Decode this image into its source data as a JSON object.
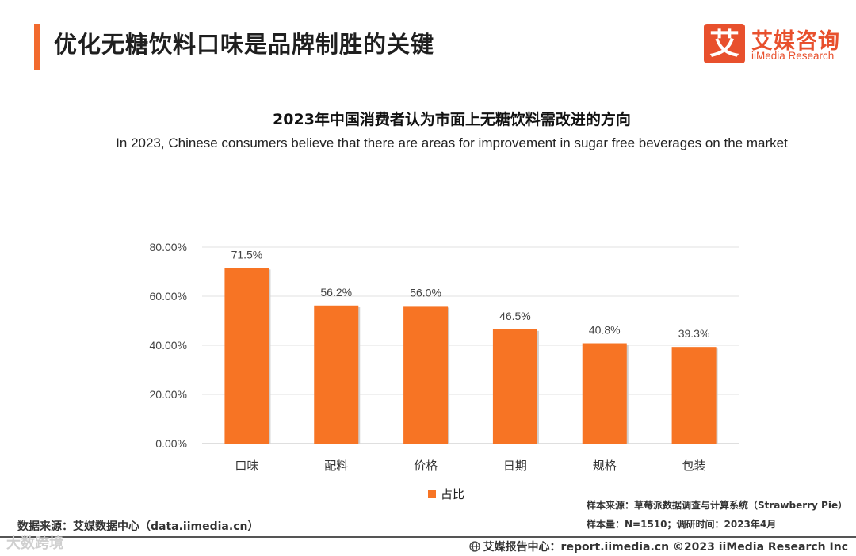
{
  "header": {
    "title": "优化无糖饮料口味是品牌制胜的关键",
    "brand_colors": {
      "accent": "#f26a2e",
      "bar": "#f77424"
    }
  },
  "logo": {
    "mark": "艾",
    "name_cn": "艾媒咨询",
    "name_en": "iiMedia Research"
  },
  "chart_data": {
    "type": "bar",
    "title": "2023年中国消费者认为市面上无糖饮料需改进的方向",
    "subtitle": "In 2023, Chinese consumers believe that there are areas for improvement in sugar free beverages on the market",
    "categories": [
      "口味",
      "配料",
      "价格",
      "日期",
      "规格",
      "包装"
    ],
    "series": [
      {
        "name": "占比",
        "values": [
          71.5,
          56.2,
          56.0,
          46.5,
          40.8,
          39.3
        ]
      }
    ],
    "data_labels": [
      "71.5%",
      "56.2%",
      "56.0%",
      "46.5%",
      "40.8%",
      "39.3%"
    ],
    "yticks": [
      0,
      20,
      40,
      60,
      80
    ],
    "ytick_labels": [
      "0.00%",
      "20.00%",
      "40.00%",
      "60.00%",
      "80.00%"
    ],
    "ylim": [
      0,
      80
    ],
    "xlabel": "",
    "ylabel": "",
    "grid": true,
    "legend_position": "bottom"
  },
  "notes": {
    "source": "数据来源：艾媒数据中心（data.iimedia.cn）",
    "sample_source": "样本来源：草莓派数据调查与计算系统（Strawberry Pie）",
    "sample_size": "样本量：N=1510；调研时间：2023年4月"
  },
  "footer": {
    "text": "艾媒报告中心：report.iimedia.cn  ©2023  iiMedia Research  Inc"
  },
  "watermark": "大数跨境"
}
